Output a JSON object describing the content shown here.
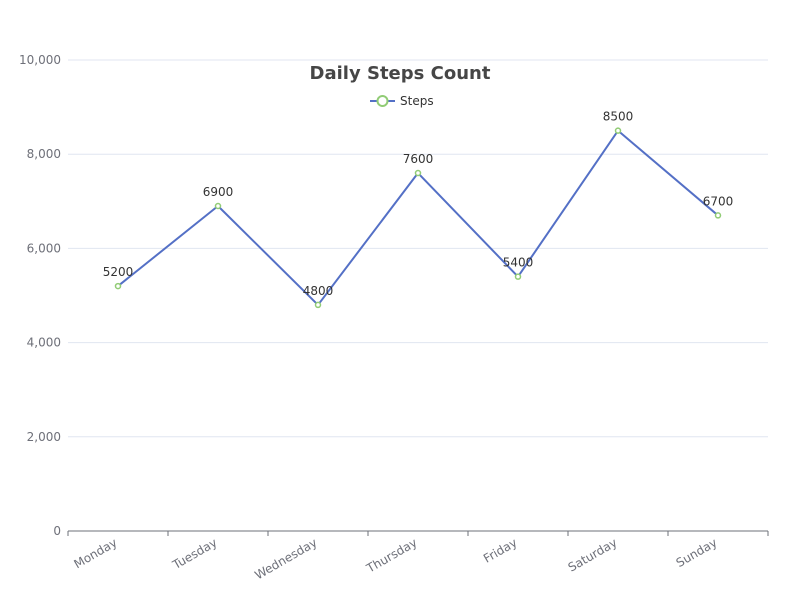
{
  "chart_data": {
    "type": "line",
    "title": "Daily Steps Count",
    "categories": [
      "Monday",
      "Tuesday",
      "Wednesday",
      "Thursday",
      "Friday",
      "Saturday",
      "Sunday"
    ],
    "series": [
      {
        "name": "Steps",
        "values": [
          5200,
          6900,
          4800,
          7600,
          5400,
          8500,
          6700
        ]
      }
    ],
    "ylim": [
      0,
      10000
    ],
    "yticks": [
      0,
      2000,
      4000,
      6000,
      8000,
      10000
    ],
    "ytick_labels": [
      "0",
      "2,000",
      "4,000",
      "6,000",
      "8,000",
      "10,000"
    ],
    "grid": true,
    "legend_position": "top-center",
    "data_labels": true,
    "colors": {
      "line": "#5470c6",
      "marker": "#91cc75",
      "grid": "#e0e6f1",
      "axis": "#6e7079"
    }
  }
}
